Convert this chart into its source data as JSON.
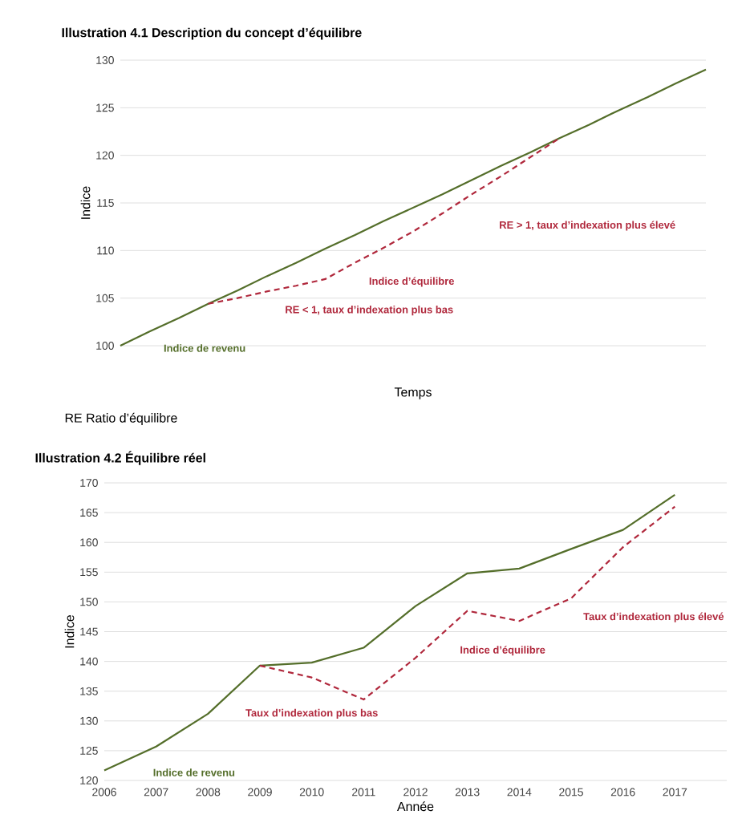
{
  "chart_data": [
    {
      "type": "line",
      "title": "Illustration 4.1 Description du concept d’équilibre",
      "xlabel": "Temps",
      "ylabel": "Indice",
      "categories": [
        null,
        null,
        null,
        null,
        null,
        null,
        null,
        null,
        null,
        null,
        null,
        null,
        null,
        null,
        null,
        null,
        null,
        null,
        null,
        null,
        null
      ],
      "series": [
        {
          "name": "Indice de revenu",
          "color": "#546e2a",
          "line_style": "solid",
          "values": [
            100,
            101.5,
            102.9,
            104.4,
            105.8,
            107.3,
            108.7,
            110.2,
            111.6,
            113.1,
            114.5,
            115.9,
            117.4,
            118.9,
            120.3,
            121.8,
            123.2,
            124.7,
            126.1,
            127.6,
            129
          ]
        },
        {
          "name": "Indice d’équilibre",
          "color": "#b0283c",
          "line_style": "dashed",
          "values": [
            null,
            null,
            null,
            104.4,
            105.0,
            105.7,
            106.3,
            107.0,
            108.7,
            110.3,
            112.0,
            113.9,
            115.9,
            117.8,
            119.8,
            121.8,
            null,
            null,
            null,
            null,
            null
          ]
        }
      ],
      "ylim": [
        100,
        130
      ],
      "yticks": [
        100,
        105,
        110,
        115,
        120,
        125,
        130
      ],
      "grid": "y",
      "tick_labels": "y",
      "annotations": [
        "RE > 1, taux d’indexation plus élevé",
        "RE < 1, taux d’indexation plus bas",
        "RE     Ratio d’équilibre"
      ]
    },
    {
      "type": "line",
      "title": "Illustration 4.2 Équilibre réel",
      "xlabel": "Année",
      "ylabel": "Indice",
      "categories": [
        "2006",
        "2007",
        "2008",
        "2009",
        "2010",
        "2011",
        "2012",
        "2013",
        "2014",
        "2015",
        "2016",
        "2017"
      ],
      "series": [
        {
          "name": "Indice de revenu",
          "color": "#546e2a",
          "line_style": "solid",
          "values": [
            121.7,
            125.7,
            131.2,
            139.3,
            139.8,
            142.3,
            149.3,
            154.8,
            155.6,
            158.9,
            162.1,
            168.0
          ]
        },
        {
          "name": "Indice d’équilibre",
          "color": "#b0283c",
          "line_style": "dashed",
          "values": [
            null,
            null,
            null,
            139.3,
            137.3,
            133.6,
            140.6,
            148.5,
            146.8,
            150.6,
            159.2,
            166.0
          ]
        }
      ],
      "ylim": [
        120,
        170
      ],
      "yticks": [
        120,
        125,
        130,
        135,
        140,
        145,
        150,
        155,
        160,
        165,
        170
      ],
      "grid": "y",
      "annotations": [
        "Taux d’indexation plus bas",
        "Taux d’indexation plus élevé"
      ]
    }
  ]
}
